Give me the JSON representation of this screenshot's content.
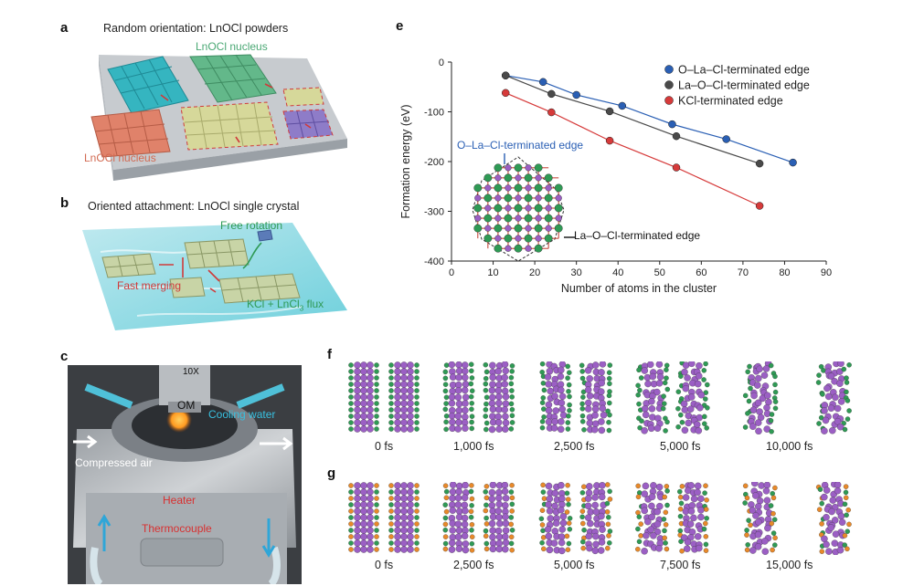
{
  "panels": {
    "a": {
      "label": "a",
      "title": "Random orientation: LnOCl powders",
      "nucleus_top": "LnOCl nucleus",
      "nucleus_bottom": "LnOCl nucleus"
    },
    "b": {
      "label": "b",
      "title": "Oriented attachment: LnOCl single crystal",
      "free_rotation": "Free rotation",
      "fast_merging": "Fast merging",
      "flux_prefix": "KCl + LnCl",
      "flux_sub": "3",
      "flux_suffix": " flux"
    },
    "c": {
      "label": "c",
      "om": "OM",
      "objective_mark": "10X",
      "cooling_water": "Cooling water",
      "compressed_air": "Compressed air",
      "heater": "Heater",
      "thermocouple": "Thermocouple"
    },
    "e": {
      "label": "e",
      "inset_top": "O–La–Cl-terminated edge",
      "inset_bottom": "La–O–Cl-terminated edge"
    },
    "f": {
      "label": "f",
      "times": [
        "0 fs",
        "1,000 fs",
        "2,500 fs",
        "5,000 fs",
        "10,000 fs"
      ]
    },
    "g": {
      "label": "g",
      "times": [
        "0 fs",
        "2,500 fs",
        "5,000 fs",
        "7,500 fs",
        "15,000 fs"
      ]
    }
  },
  "colors": {
    "blue": "#2a5fb4",
    "gray": "#4a4a4a",
    "red": "#d63a3a",
    "teal": "#35b5c0",
    "green": "#63b88a",
    "salmon": "#e0826a",
    "khaki": "#d6d89a",
    "violet": "#8e7cc8",
    "cl_green": "#2f9a55",
    "la_purple": "#9b5fc4",
    "k_orange": "#e8892a"
  },
  "chart_data": {
    "type": "line",
    "xlabel": "Number of atoms in the cluster",
    "ylabel": "Formation energy (eV)",
    "xlim": [
      0,
      90
    ],
    "ylim": [
      -400,
      0
    ],
    "xticks": [
      0,
      10,
      20,
      30,
      40,
      50,
      60,
      70,
      80,
      90
    ],
    "yticks": [
      0,
      -100,
      -200,
      -300,
      -400
    ],
    "legend_position": "top-right",
    "series": [
      {
        "name": "O–La–Cl-terminated edge",
        "color": "#2a5fb4",
        "x": [
          13,
          22,
          30,
          41,
          53,
          66,
          82
        ],
        "y": [
          -27,
          -40,
          -66,
          -88,
          -125,
          -155,
          -202
        ]
      },
      {
        "name": "La–O–Cl-terminated edge",
        "color": "#4a4a4a",
        "x": [
          13,
          24,
          38,
          54,
          74
        ],
        "y": [
          -27,
          -64,
          -99,
          -149,
          -204
        ]
      },
      {
        "name": "KCl-terminated edge",
        "color": "#d63a3a",
        "x": [
          13,
          24,
          38,
          54,
          74
        ],
        "y": [
          -62,
          -101,
          -158,
          -212,
          -289
        ]
      }
    ]
  }
}
